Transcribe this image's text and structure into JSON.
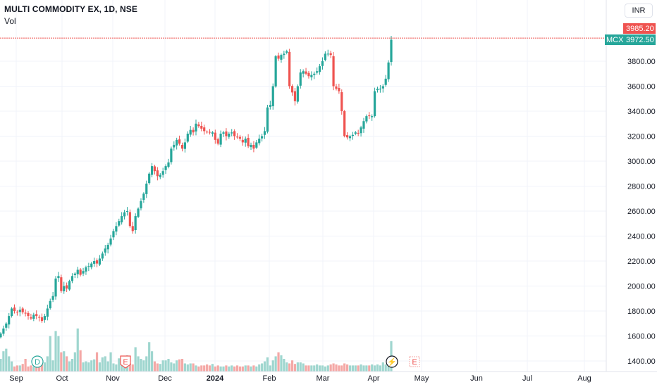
{
  "header": {
    "title": "MULTI COMMODITY EX, 1D, NSE",
    "volume_label": "Vol",
    "currency": "INR"
  },
  "price_tags": {
    "high_line": "3985.20",
    "last": "3972.50",
    "symbol": "MCX"
  },
  "events": {
    "dividend": "D",
    "earnings": "E",
    "split": "⚡"
  },
  "colors": {
    "up": "#26a69a",
    "down": "#ef5350",
    "vol_up": "#9fd6cf",
    "vol_down": "#f4a8a6",
    "line": "#ef5350",
    "grid": "#f0f3fa"
  },
  "chart_data": {
    "type": "candlestick",
    "title": "MULTI COMMODITY EX, 1D, NSE",
    "ylabel": "INR",
    "ylim": [
      1350,
      4150
    ],
    "yticks": [
      1400,
      1600,
      1800,
      2000,
      2200,
      2400,
      2600,
      2800,
      3000,
      3200,
      3400,
      3600,
      3800
    ],
    "xticks": [
      "Sep",
      "Oct",
      "Nov",
      "Dec",
      "2024",
      "Feb",
      "Mar",
      "Apr",
      "May",
      "Jun",
      "Jul",
      "Aug"
    ],
    "reference_line": 3985.2,
    "last_price": 3972.5,
    "close_series": [
      1620,
      1660,
      1700,
      1760,
      1820,
      1800,
      1790,
      1810,
      1790,
      1780,
      1760,
      1740,
      1770,
      1760,
      1750,
      1720,
      1760,
      1820,
      1880,
      1920,
      2060,
      2080,
      1960,
      2000,
      1980,
      2040,
      2080,
      2100,
      2130,
      2090,
      2120,
      2150,
      2160,
      2180,
      2200,
      2180,
      2220,
      2260,
      2300,
      2330,
      2380,
      2440,
      2480,
      2520,
      2560,
      2590,
      2600,
      2480,
      2440,
      2560,
      2620,
      2680,
      2740,
      2820,
      2900,
      2960,
      2920,
      2880,
      2890,
      2920,
      2960,
      2990,
      3100,
      3130,
      3170,
      3140,
      3100,
      3150,
      3220,
      3250,
      3230,
      3300,
      3280,
      3260,
      3240,
      3230,
      3230,
      3230,
      3170,
      3140,
      3220,
      3230,
      3200,
      3220,
      3230,
      3200,
      3190,
      3180,
      3150,
      3180,
      3120,
      3130,
      3100,
      3150,
      3180,
      3200,
      3240,
      3430,
      3450,
      3600,
      3840,
      3820,
      3850,
      3860,
      3880,
      3600,
      3550,
      3480,
      3600,
      3710,
      3720,
      3700,
      3680,
      3690,
      3700,
      3720,
      3760,
      3800,
      3860,
      3860,
      3850,
      3600,
      3580,
      3560,
      3400,
      3200,
      3190,
      3200,
      3210,
      3230,
      3220,
      3270,
      3320,
      3360,
      3360,
      3360,
      3560,
      3580,
      3580,
      3600,
      3660,
      3790,
      3972
    ],
    "volume_series": [
      25,
      40,
      45,
      30,
      20,
      10,
      12,
      12,
      15,
      25,
      10,
      12,
      10,
      18,
      28,
      15,
      18,
      30,
      70,
      22,
      80,
      70,
      38,
      40,
      30,
      20,
      25,
      38,
      85,
      42,
      18,
      20,
      18,
      22,
      24,
      38,
      18,
      28,
      30,
      20,
      38,
      16,
      14,
      26,
      20,
      28,
      32,
      16,
      14,
      48,
      30,
      25,
      22,
      30,
      58,
      40,
      20,
      16,
      15,
      22,
      22,
      25,
      18,
      16,
      22,
      24,
      25,
      16,
      14,
      16,
      16,
      12,
      10,
      12,
      12,
      14,
      12,
      15,
      10,
      12,
      10,
      10,
      12,
      10,
      12,
      10,
      12,
      10,
      10,
      12,
      12,
      10,
      12,
      10,
      14,
      16,
      20,
      28,
      12,
      22,
      30,
      38,
      32,
      25,
      18,
      16,
      22,
      15,
      18,
      18,
      16,
      12,
      12,
      12,
      12,
      14,
      12,
      12,
      10,
      12,
      14,
      16,
      14,
      12,
      12,
      16,
      14,
      12,
      12,
      12,
      12,
      14,
      12,
      12,
      12,
      14,
      12,
      14,
      12,
      18,
      14,
      20,
      60
    ]
  }
}
